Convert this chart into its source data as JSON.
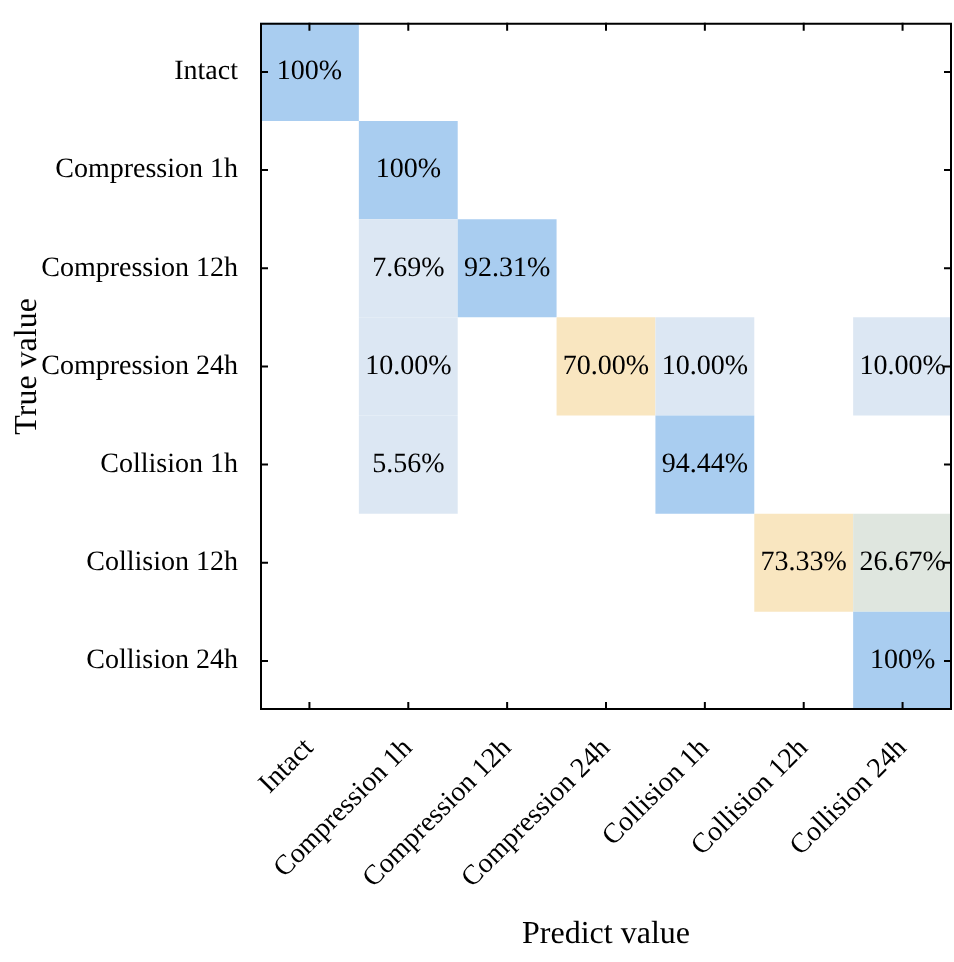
{
  "chart_data": {
    "type": "heatmap",
    "xlabel": "Predict value",
    "ylabel": "True value",
    "categories": [
      "Intact",
      "Compression 1h",
      "Compression 12h",
      "Compression 24h",
      "Collision 1h",
      "Collision 12h",
      "Collision 24h"
    ],
    "y_categories": [
      "Intact",
      "Compression 1h",
      "Compression 12h",
      "Compression 24h",
      "Collision 1h",
      "Collision 12h",
      "Collision 24h"
    ],
    "cells": [
      [
        100,
        null,
        null,
        null,
        null,
        null,
        null
      ],
      [
        null,
        100,
        null,
        null,
        null,
        null,
        null
      ],
      [
        null,
        7.69,
        92.31,
        null,
        null,
        null,
        null
      ],
      [
        null,
        10.0,
        null,
        70.0,
        10.0,
        null,
        10.0
      ],
      [
        null,
        5.56,
        null,
        null,
        94.44,
        null,
        null
      ],
      [
        null,
        null,
        null,
        null,
        null,
        73.33,
        26.67
      ],
      [
        null,
        null,
        null,
        null,
        null,
        null,
        100
      ]
    ],
    "cell_labels": [
      [
        "100%",
        null,
        null,
        null,
        null,
        null,
        null
      ],
      [
        null,
        "100%",
        null,
        null,
        null,
        null,
        null
      ],
      [
        null,
        "7.69%",
        "92.31%",
        null,
        null,
        null,
        null
      ],
      [
        null,
        "10.00%",
        null,
        "70.00%",
        "10.00%",
        null,
        "10.00%"
      ],
      [
        null,
        "5.56%",
        null,
        null,
        "94.44%",
        null,
        null
      ],
      [
        null,
        null,
        null,
        null,
        null,
        "73.33%",
        "26.67%"
      ],
      [
        null,
        null,
        null,
        null,
        null,
        null,
        "100%"
      ]
    ]
  }
}
